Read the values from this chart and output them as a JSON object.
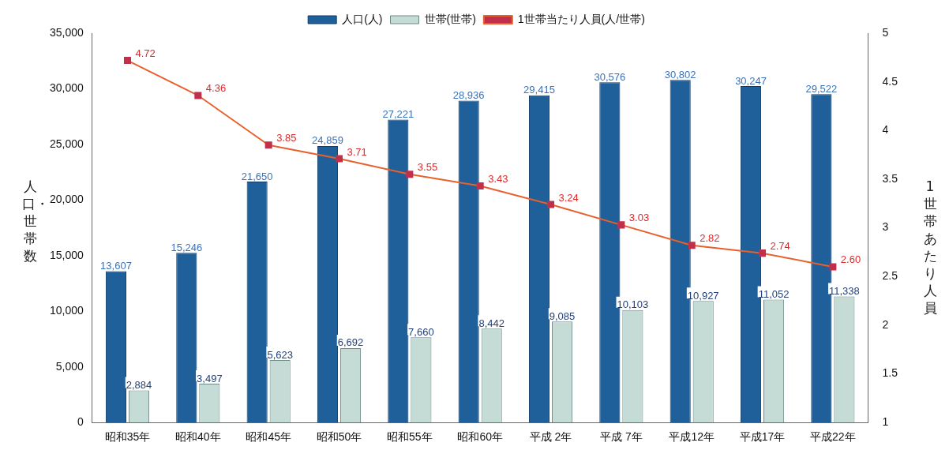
{
  "chart_data": {
    "type": "bar",
    "categories": [
      "昭和35年",
      "昭和40年",
      "昭和45年",
      "昭和50年",
      "昭和55年",
      "昭和60年",
      "平成 2年",
      "平成 7年",
      "平成12年",
      "平成17年",
      "平成22年"
    ],
    "ylabel": "人口・世帯数",
    "y2label": "1世帯あたり人員",
    "ylim": [
      0,
      35000
    ],
    "yticks": [
      {
        "value": 0,
        "label": "0"
      },
      {
        "value": 5000,
        "label": "5,000"
      },
      {
        "value": 10000,
        "label": "10,000"
      },
      {
        "value": 15000,
        "label": "15,000"
      },
      {
        "value": 20000,
        "label": "20,000"
      },
      {
        "value": 25000,
        "label": "25,000"
      },
      {
        "value": 30000,
        "label": "30,000"
      },
      {
        "value": 35000,
        "label": "35,000"
      }
    ],
    "y2lim": [
      1,
      5
    ],
    "y2ticks": [
      1,
      1.5,
      2,
      2.5,
      3,
      3.5,
      4,
      4.5,
      5
    ],
    "grid": false,
    "legend": "top",
    "marker": "square",
    "line_style": "solid",
    "series": [
      {
        "name": "人口(人)",
        "color": "#1f5f9a",
        "values": [
          13607,
          15246,
          21650,
          24859,
          27221,
          28936,
          29415,
          30576,
          30802,
          30247,
          29522
        ],
        "value_labels": [
          "13,607",
          "15,246",
          "21,650",
          "24,859",
          "27,221",
          "28,936",
          "29,415",
          "30,576",
          "30,802",
          "30,247",
          "29,522"
        ]
      },
      {
        "name": "世帯(世帯)",
        "color": "#c5dcd6",
        "values": [
          2884,
          3497,
          5623,
          6692,
          7660,
          8442,
          9085,
          10103,
          10927,
          11052,
          11338
        ],
        "value_labels": [
          "2,884",
          "3,497",
          "5,623",
          "6,692",
          "7,660",
          "8,442",
          "9,085",
          "10,103",
          "10,927",
          "11,052",
          "11,338"
        ]
      },
      {
        "name": "1世帯当たり人員(人/世帯)",
        "type": "line",
        "axis": "y2",
        "color": "#e8602c",
        "values": [
          4.72,
          4.36,
          3.85,
          3.71,
          3.55,
          3.43,
          3.24,
          3.03,
          2.82,
          2.74,
          2.6
        ],
        "value_labels": [
          "4.72",
          "4.36",
          "3.85",
          "3.71",
          "3.55",
          "3.43",
          "3.24",
          "3.03",
          "2.82",
          "2.74",
          "2.60"
        ]
      }
    ]
  }
}
